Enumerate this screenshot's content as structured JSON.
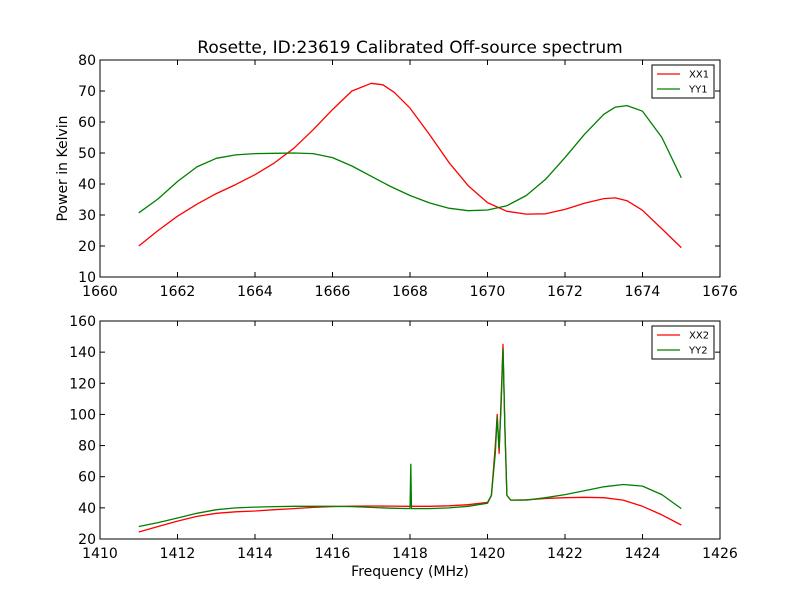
{
  "chart_data": [
    {
      "type": "line",
      "title": "Rosette, ID:23619 Calibrated Off-source spectrum",
      "xlabel": "",
      "ylabel": "Power in Kelvin",
      "xlim": [
        1660,
        1676
      ],
      "ylim": [
        10,
        80
      ],
      "xticks": [
        "1660",
        "1662",
        "1664",
        "1666",
        "1668",
        "1670",
        "1672",
        "1674",
        "1676"
      ],
      "yticks": [
        "10",
        "20",
        "30",
        "40",
        "50",
        "60",
        "70",
        "80"
      ],
      "legend_position": "top-right",
      "grid": false,
      "series": [
        {
          "name": "XX1",
          "color": "#ff0000",
          "x": [
            1661.0,
            1661.5,
            1662.0,
            1662.5,
            1663.0,
            1663.5,
            1664.0,
            1664.5,
            1665.0,
            1665.5,
            1666.0,
            1666.5,
            1667.0,
            1667.3,
            1667.6,
            1668.0,
            1668.5,
            1669.0,
            1669.5,
            1670.0,
            1670.5,
            1671.0,
            1671.5,
            1672.0,
            1672.5,
            1673.0,
            1673.3,
            1673.6,
            1674.0,
            1674.5,
            1675.0
          ],
          "y": [
            20.0,
            25.0,
            29.6,
            33.5,
            36.9,
            39.8,
            43.0,
            46.8,
            51.5,
            57.5,
            64.0,
            70.0,
            72.5,
            72.0,
            69.5,
            64.5,
            56.0,
            47.0,
            39.5,
            34.0,
            31.2,
            30.3,
            30.4,
            31.8,
            33.8,
            35.3,
            35.5,
            34.6,
            31.5,
            25.5,
            19.5
          ]
        },
        {
          "name": "YY1",
          "color": "#008000",
          "x": [
            1661.0,
            1661.5,
            1662.0,
            1662.5,
            1663.0,
            1663.5,
            1664.0,
            1664.5,
            1665.0,
            1665.5,
            1666.0,
            1666.5,
            1667.0,
            1667.5,
            1668.0,
            1668.5,
            1669.0,
            1669.5,
            1670.0,
            1670.5,
            1671.0,
            1671.5,
            1672.0,
            1672.5,
            1673.0,
            1673.3,
            1673.6,
            1674.0,
            1674.5,
            1675.0
          ],
          "y": [
            30.7,
            35.2,
            40.8,
            45.5,
            48.3,
            49.4,
            49.8,
            49.9,
            50.0,
            49.8,
            48.5,
            45.8,
            42.5,
            39.2,
            36.3,
            33.9,
            32.2,
            31.4,
            31.6,
            33.0,
            36.3,
            41.5,
            48.5,
            56.0,
            62.5,
            64.8,
            65.3,
            63.5,
            55.0,
            42.0
          ]
        }
      ]
    },
    {
      "type": "line",
      "title": "",
      "xlabel": "Frequency (MHz)",
      "ylabel": "",
      "xlim": [
        1410,
        1426
      ],
      "ylim": [
        20,
        160
      ],
      "xticks": [
        "1410",
        "1412",
        "1414",
        "1416",
        "1418",
        "1420",
        "1422",
        "1424",
        "1426"
      ],
      "yticks": [
        "20",
        "40",
        "60",
        "80",
        "100",
        "120",
        "140",
        "160"
      ],
      "legend_position": "top-right",
      "grid": false,
      "series": [
        {
          "name": "XX2",
          "color": "#ff0000",
          "x": [
            1411.0,
            1411.5,
            1412.0,
            1412.5,
            1413.0,
            1413.5,
            1414.0,
            1414.5,
            1415.0,
            1415.5,
            1416.0,
            1416.5,
            1417.0,
            1417.5,
            1418.0,
            1418.02,
            1418.04,
            1418.5,
            1419.0,
            1419.5,
            1420.0,
            1420.1,
            1420.2,
            1420.25,
            1420.3,
            1420.35,
            1420.4,
            1420.45,
            1420.5,
            1420.6,
            1421.0,
            1421.5,
            1422.0,
            1422.5,
            1423.0,
            1423.5,
            1424.0,
            1424.5,
            1425.0
          ],
          "y": [
            24.5,
            28.0,
            31.5,
            34.5,
            36.5,
            37.5,
            38.0,
            38.8,
            39.5,
            40.3,
            40.8,
            41.1,
            41.2,
            41.1,
            41.0,
            45.0,
            41.0,
            41.0,
            41.3,
            42.0,
            43.5,
            48.0,
            80.0,
            100.0,
            75.0,
            110.0,
            145.0,
            90.0,
            48.0,
            45.0,
            45.2,
            46.0,
            46.5,
            46.8,
            46.5,
            45.0,
            41.0,
            35.5,
            29.0
          ]
        },
        {
          "name": "YY2",
          "color": "#008000",
          "x": [
            1411.0,
            1411.5,
            1412.0,
            1412.5,
            1413.0,
            1413.5,
            1414.0,
            1414.5,
            1415.0,
            1415.5,
            1416.0,
            1416.5,
            1417.0,
            1417.5,
            1418.0,
            1418.02,
            1418.04,
            1418.5,
            1419.0,
            1419.5,
            1420.0,
            1420.1,
            1420.2,
            1420.25,
            1420.3,
            1420.35,
            1420.4,
            1420.45,
            1420.5,
            1420.6,
            1421.0,
            1421.5,
            1422.0,
            1422.5,
            1423.0,
            1423.5,
            1424.0,
            1424.5,
            1425.0
          ],
          "y": [
            28.0,
            30.5,
            33.5,
            36.5,
            38.8,
            40.0,
            40.5,
            40.8,
            41.0,
            41.0,
            41.0,
            40.8,
            40.3,
            39.8,
            39.5,
            68.0,
            39.5,
            39.5,
            40.0,
            41.0,
            43.0,
            48.0,
            75.0,
            98.0,
            78.0,
            105.0,
            142.0,
            92.0,
            48.0,
            45.0,
            45.0,
            46.5,
            48.5,
            51.0,
            53.5,
            55.0,
            54.0,
            48.5,
            39.5
          ]
        }
      ]
    }
  ]
}
